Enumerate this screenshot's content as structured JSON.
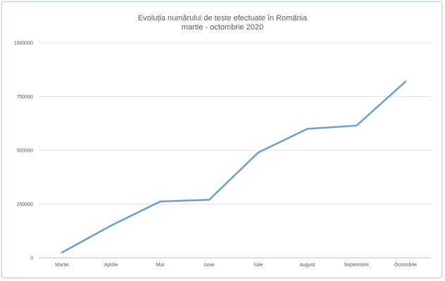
{
  "chart_data": {
    "type": "line",
    "title": "Evoluția numărului de teste efectuate în România",
    "subtitle": "martie - octombrie 2020",
    "xlabel": "",
    "ylabel": "",
    "categories": [
      "Martie",
      "Aprilie",
      "Mai",
      "Iunie",
      "Iulie",
      "August",
      "Septembrie",
      "Octombrie"
    ],
    "series": [
      {
        "values": [
          25000,
          150000,
          262000,
          270000,
          490000,
          600000,
          615000,
          820000
        ],
        "color": "#6b9ecf"
      }
    ],
    "ylim": [
      0,
      1000000
    ],
    "yticks": [
      {
        "value": 0,
        "label": "0"
      },
      {
        "value": 250000,
        "label": "250000"
      },
      {
        "value": 500000,
        "label": "500000"
      },
      {
        "value": 750000,
        "label": "750000"
      },
      {
        "value": 1000000,
        "label": "1000000"
      }
    ],
    "grid": true,
    "legend": "none"
  }
}
